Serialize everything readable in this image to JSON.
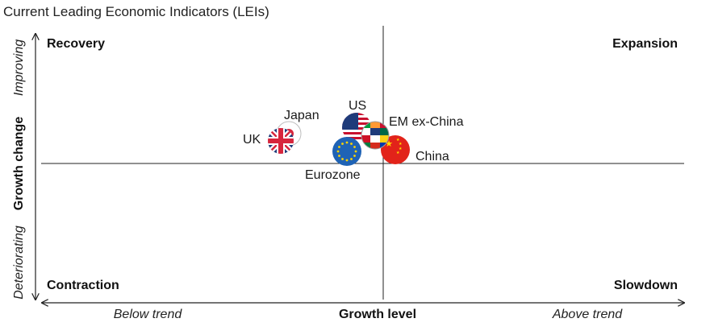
{
  "chart_data": {
    "type": "scatter",
    "title": "Current Leading Economic Indicators (LEIs)",
    "xlabel": "Growth level",
    "ylabel": "Growth change",
    "x_low_label": "Below trend",
    "x_high_label": "Above trend",
    "y_low_label": "Deteriorating",
    "y_high_label": "Improving",
    "quadrants": {
      "top_left": "Recovery",
      "top_right": "Expansion",
      "bottom_left": "Contraction",
      "bottom_right": "Slowdown"
    },
    "xlim": [
      -1,
      1
    ],
    "ylim": [
      -1,
      1
    ],
    "points": [
      {
        "name": "UK",
        "x": -0.32,
        "y": 0.16,
        "color": "#1f3b7a"
      },
      {
        "name": "Japan",
        "x": -0.29,
        "y": 0.22,
        "color": "#d7263d"
      },
      {
        "name": "US",
        "x": -0.08,
        "y": 0.27,
        "color": "#1f3b7a"
      },
      {
        "name": "Eurozone",
        "x": -0.11,
        "y": 0.08,
        "color": "#1f63b5"
      },
      {
        "name": "EM ex-China",
        "x": -0.02,
        "y": 0.2,
        "color": "#7a8a6a"
      },
      {
        "name": "China",
        "x": 0.04,
        "y": 0.1,
        "color": "#e2231a"
      }
    ]
  }
}
